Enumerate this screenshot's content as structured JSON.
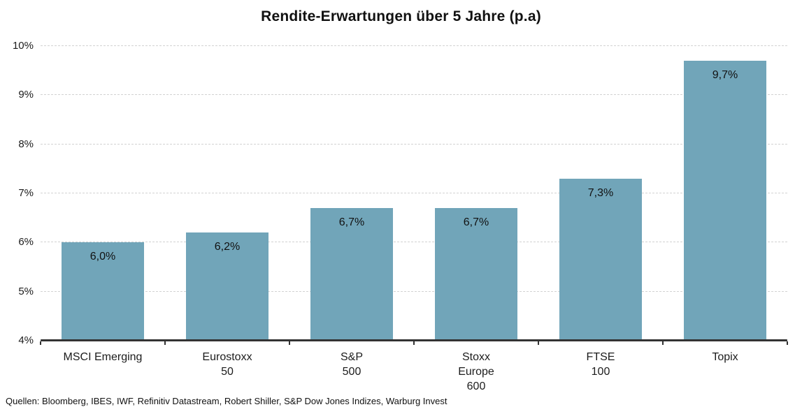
{
  "title": "Rendite-Erwartungen über 5 Jahre (p.a)",
  "footer": {
    "sources": "Quellen: Bloomberg, IBES, IWF, Refinitiv Datastream, Robert Shiller, S&P Dow Jones Indizes, Warburg Invest"
  },
  "chart_data": {
    "type": "bar",
    "title": "Rendite-Erwartungen über 5 Jahre (p.a)",
    "categories": [
      "MSCI Emerging",
      "Eurostoxx\n50",
      "S&P\n500",
      "Stoxx\nEurope\n600",
      "FTSE\n100",
      "Topix"
    ],
    "values": [
      6.0,
      6.2,
      6.7,
      6.7,
      7.3,
      9.7
    ],
    "value_labels": [
      "6,0%",
      "6,2%",
      "6,7%",
      "6,7%",
      "7,3%",
      "9,7%"
    ],
    "xlabel": "",
    "ylabel": "",
    "ylim": [
      4,
      10
    ],
    "ytick_step": 1,
    "ytick_labels": [
      "4%",
      "5%",
      "6%",
      "7%",
      "8%",
      "9%",
      "10%"
    ],
    "grid": true,
    "legend": "none",
    "bar_color": "#71a5b9",
    "axis_color": "#333333",
    "gridline_color": "#d2d2d2",
    "text_color": "#1c1c1c"
  }
}
